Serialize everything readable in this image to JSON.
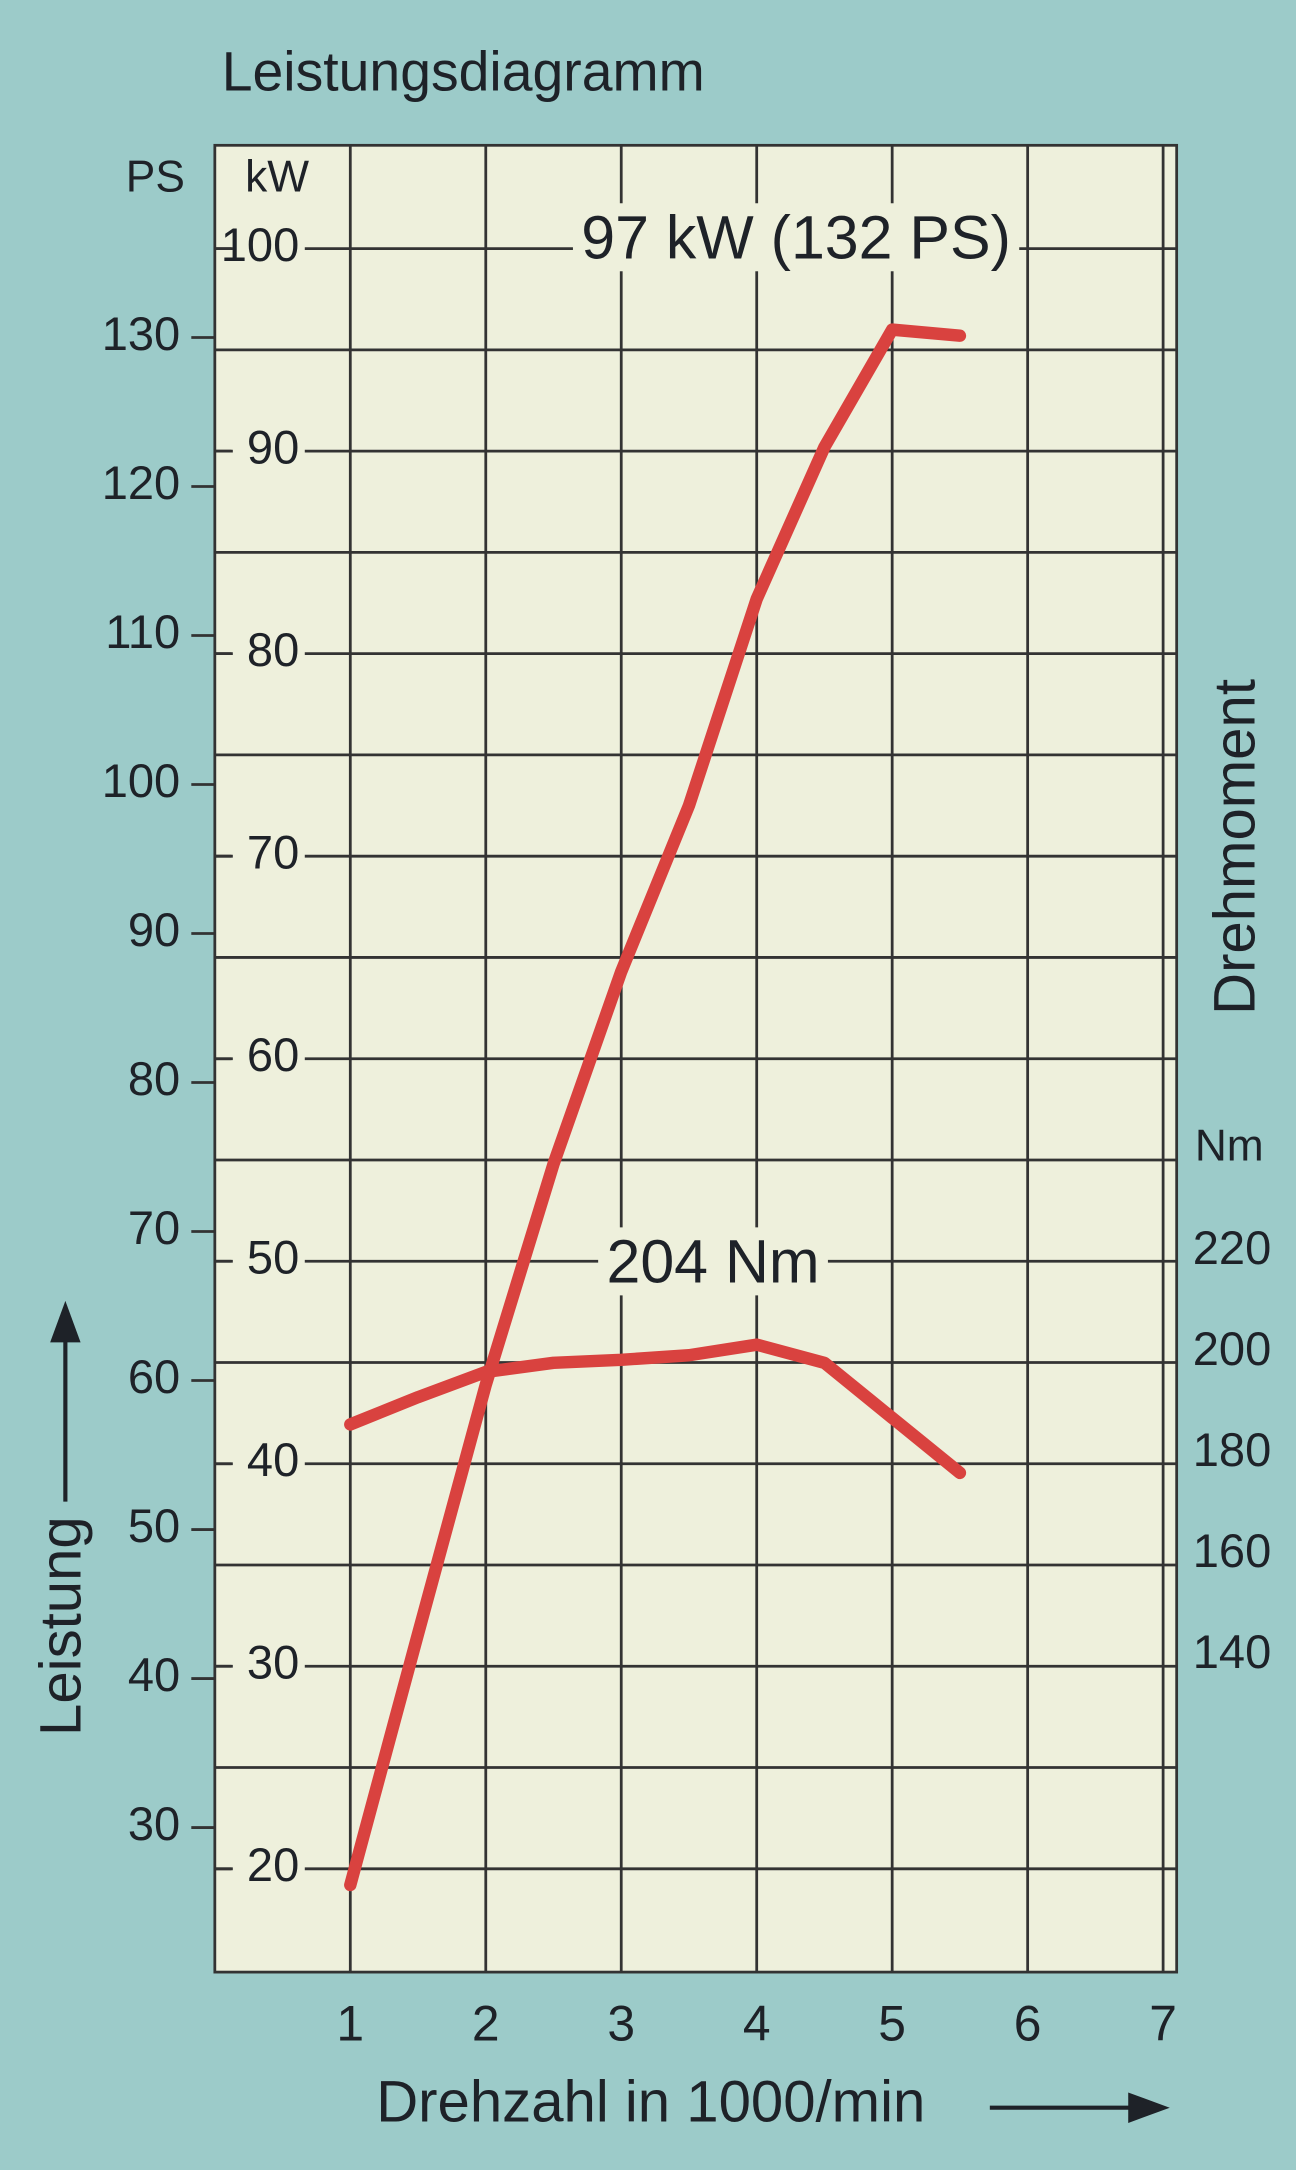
{
  "chart_data": {
    "type": "line",
    "title": "Leistungsdiagramm",
    "x_label": "Drehzahl in 1000/min",
    "y_label": "Leistung",
    "y_unit": "kW",
    "y2_unit": "PS",
    "y3_label": "Drehmoment",
    "y3_unit": "Nm",
    "annotations": [
      "97 kW (132 PS)",
      "204 Nm"
    ],
    "x": [
      1,
      1.5,
      2,
      2.5,
      3,
      3.5,
      4,
      4.5,
      5,
      5.5
    ],
    "xlim": [
      0,
      7.1
    ],
    "xticks": [
      1,
      2,
      3,
      4,
      5,
      6,
      7
    ],
    "ylim": [
      14.9,
      105.1
    ],
    "yticks": [
      20,
      30,
      40,
      50,
      60,
      70,
      80,
      90,
      100
    ],
    "ygrid": [
      20,
      25,
      30,
      35,
      40,
      45,
      50,
      55,
      60,
      65,
      70,
      75,
      80,
      85,
      90,
      95,
      100
    ],
    "y2lim": [
      20.3,
      142.9
    ],
    "y2ticks": [
      30,
      40,
      50,
      60,
      70,
      80,
      90,
      100,
      110,
      120,
      130
    ],
    "y3lim": [
      77.3,
      439.2
    ],
    "y3ticks": [
      140,
      160,
      180,
      200,
      220
    ],
    "grid": true,
    "series": [
      {
        "name": "Leistung",
        "color": "#d9423f",
        "values": [
          19.2,
          31.6,
          43.9,
          54.8,
          64.3,
          72.5,
          82.7,
          90.2,
          96,
          95.7
        ]
      },
      {
        "name": "Drehmoment",
        "color": "#d9423f",
        "axis": "y3",
        "values": [
          185.8,
          191.2,
          196.2,
          198,
          198.6,
          199.5,
          201.6,
          198,
          187.1,
          176.2
        ]
      }
    ]
  }
}
